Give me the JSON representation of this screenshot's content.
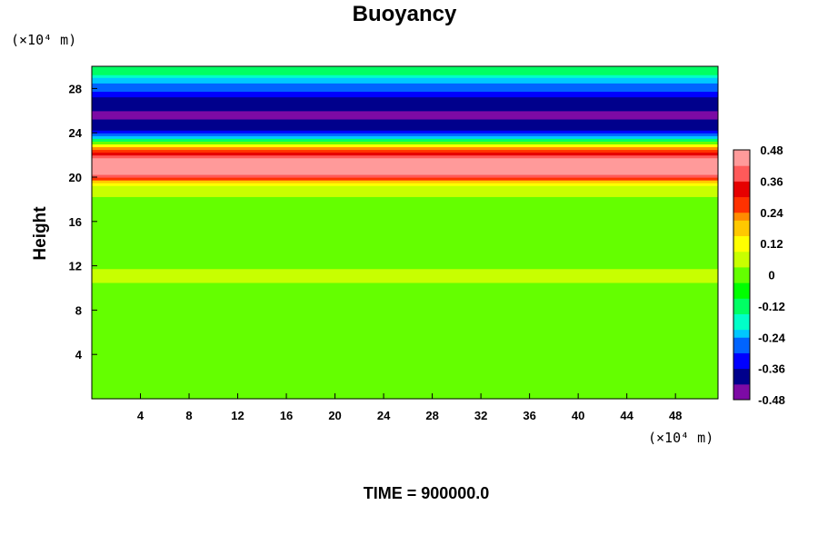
{
  "chart_data": {
    "type": "heatmap",
    "title": "Buoyancy",
    "ylabel": "Height",
    "x_unit_label": "(×10⁴ m)",
    "y_unit_label": "(×10⁴ m)",
    "xlim": [
      0,
      51.5
    ],
    "ylim": [
      0,
      30
    ],
    "x_ticks": [
      "4",
      "8",
      "12",
      "16",
      "20",
      "24",
      "28",
      "32",
      "36",
      "40",
      "44",
      "48"
    ],
    "y_ticks": [
      "4",
      "8",
      "12",
      "16",
      "20",
      "24",
      "28"
    ],
    "colorbar_ticks": [
      "0.48",
      "0.36",
      "0.24",
      "0.12",
      "0",
      "-0.12",
      "-0.24",
      "-0.36",
      "-0.48"
    ],
    "colorbar_range": [
      -0.48,
      0.48
    ],
    "colormap": [
      "#7d0aa5",
      "#00008c",
      "#0000ff",
      "#0064ff",
      "#00c8ff",
      "#00ffc8",
      "#00ff64",
      "#00ff00",
      "#64ff00",
      "#c8ff00",
      "#ffff00",
      "#ffc800",
      "#ff8c00",
      "#ff3200",
      "#e60000",
      "#ff5a5a",
      "#ff9a9a"
    ],
    "profile_height": [
      0,
      10,
      11,
      12,
      18,
      19.5,
      20.2,
      21,
      21.5,
      22,
      22.6,
      23.2,
      24,
      25.5,
      27,
      28.5,
      29.5,
      30
    ],
    "profile_buoyancy": [
      0.0,
      0.0,
      0.06,
      0.02,
      0.02,
      0.1,
      0.42,
      0.5,
      0.5,
      0.38,
      0.25,
      -0.05,
      -0.35,
      -0.44,
      -0.38,
      -0.25,
      -0.12,
      -0.1
    ],
    "annotation": "TIME = 900000.0"
  }
}
